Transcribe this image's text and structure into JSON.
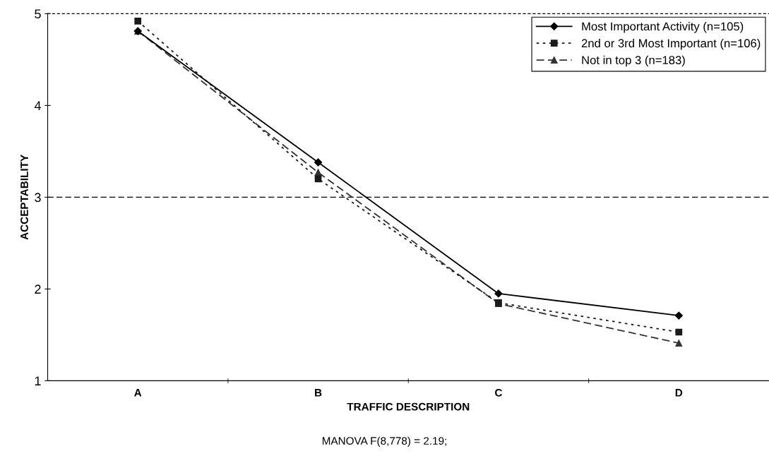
{
  "chart_data": {
    "type": "line",
    "xlabel": "TRAFFIC DESCRIPTION",
    "ylabel": "ACCEPTABILITY",
    "categories": [
      "A",
      "B",
      "C",
      "D"
    ],
    "series": [
      {
        "name": "Most Important Activity (n=105)",
        "color": "#000000",
        "marker": "diamond",
        "line_style": "solid",
        "values": [
          4.81,
          3.38,
          1.95,
          1.71
        ]
      },
      {
        "name": "2nd or 3rd Most Important (n=106)",
        "color": "#1a1a1a",
        "marker": "square",
        "line_style": "dotted",
        "values": [
          4.92,
          3.2,
          1.85,
          1.53
        ]
      },
      {
        "name": "Not in top 3 (n=183)",
        "color": "#333333",
        "marker": "triangle",
        "line_style": "dashed",
        "values": [
          4.81,
          3.27,
          1.84,
          1.41
        ]
      }
    ],
    "ylim": [
      1,
      5
    ],
    "yticks": [
      1,
      2,
      3,
      4,
      5
    ],
    "ref_lines": [
      {
        "axis": "y",
        "value": 3,
        "line_style": "dashed"
      }
    ],
    "grid": false,
    "legend": "top right",
    "annotations": [
      "MANOVA F(8,778) = 2.19;"
    ]
  }
}
